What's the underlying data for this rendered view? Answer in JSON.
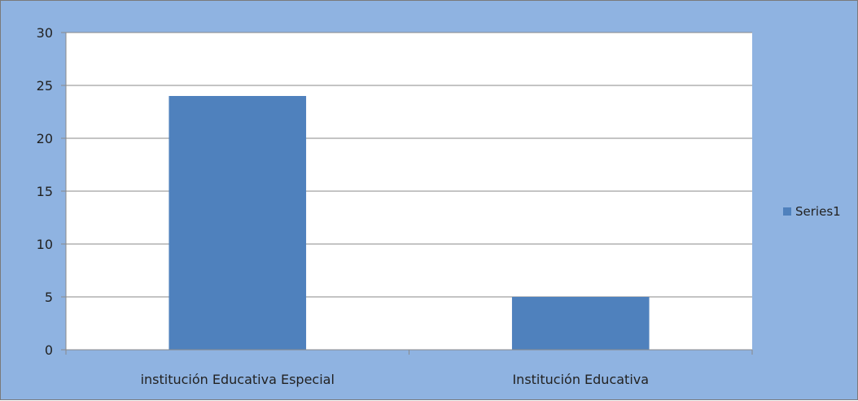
{
  "chart_data": {
    "type": "bar",
    "categories": [
      "institución Educativa Especial",
      "Institución Educativa"
    ],
    "series": [
      {
        "name": "Series1",
        "values": [
          24,
          5
        ],
        "color": "#4f81bd"
      }
    ],
    "ylim": [
      0,
      30
    ],
    "yticks": [
      0,
      5,
      10,
      15,
      20,
      25,
      30
    ],
    "grid": true,
    "legend_position": "right",
    "colors": {
      "background": "#8fb3e1",
      "plot_area": "#ffffff",
      "gridline": "#8a8a8a",
      "bar": "#4f81bd"
    }
  }
}
